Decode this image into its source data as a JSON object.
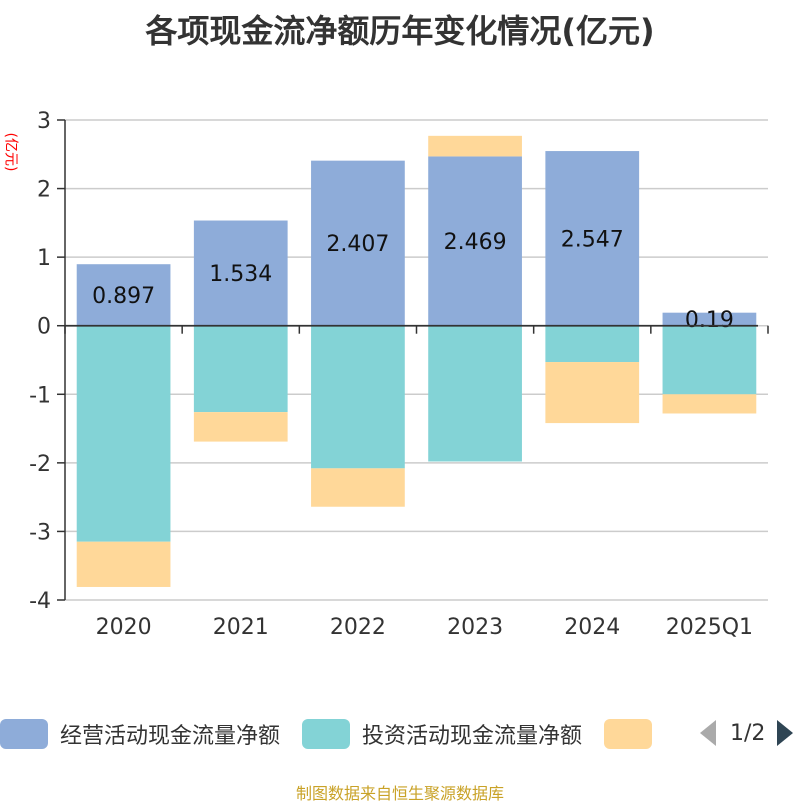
{
  "title": "各项现金流净额历年变化情况(亿元)",
  "unit_label": "(亿元)",
  "source": "制图数据来自恒生聚源数据库",
  "pager": {
    "text": "1/2"
  },
  "colors": {
    "operating": "#8eacd9",
    "investing": "#83d3d6",
    "financing": "#ffd899",
    "source": "#c9a227",
    "unit": "#ff0000"
  },
  "legend": [
    {
      "label": "经营活动现金流量净额",
      "color": "#8eacd9"
    },
    {
      "label": "投资活动现金流量净额",
      "color": "#83d3d6"
    },
    {
      "label": "",
      "color": "#ffd899"
    }
  ],
  "chart_data": {
    "type": "bar",
    "stacked": true,
    "title": "各项现金流净额历年变化情况(亿元)",
    "ylabel": "(亿元)",
    "ylim": [
      -4,
      3
    ],
    "yticks": [
      3,
      2,
      1,
      0,
      -1,
      -2,
      -3,
      -4
    ],
    "categories": [
      "2020",
      "2021",
      "2022",
      "2023",
      "2024",
      "2025Q1"
    ],
    "series": [
      {
        "name": "经营活动现金流量净额",
        "values": [
          0.897,
          1.534,
          2.407,
          2.469,
          2.547,
          0.19
        ],
        "labels": [
          "0.897",
          "1.534",
          "2.407",
          "2.469",
          "2.547",
          "0.19"
        ]
      },
      {
        "name": "投资活动现金流量净额",
        "values": [
          -3.15,
          -1.26,
          -2.08,
          -1.98,
          -0.53,
          -1.0
        ]
      },
      {
        "name": "",
        "values": [
          -0.66,
          -0.43,
          -0.56,
          0.3,
          -0.89,
          -0.28
        ]
      }
    ]
  }
}
